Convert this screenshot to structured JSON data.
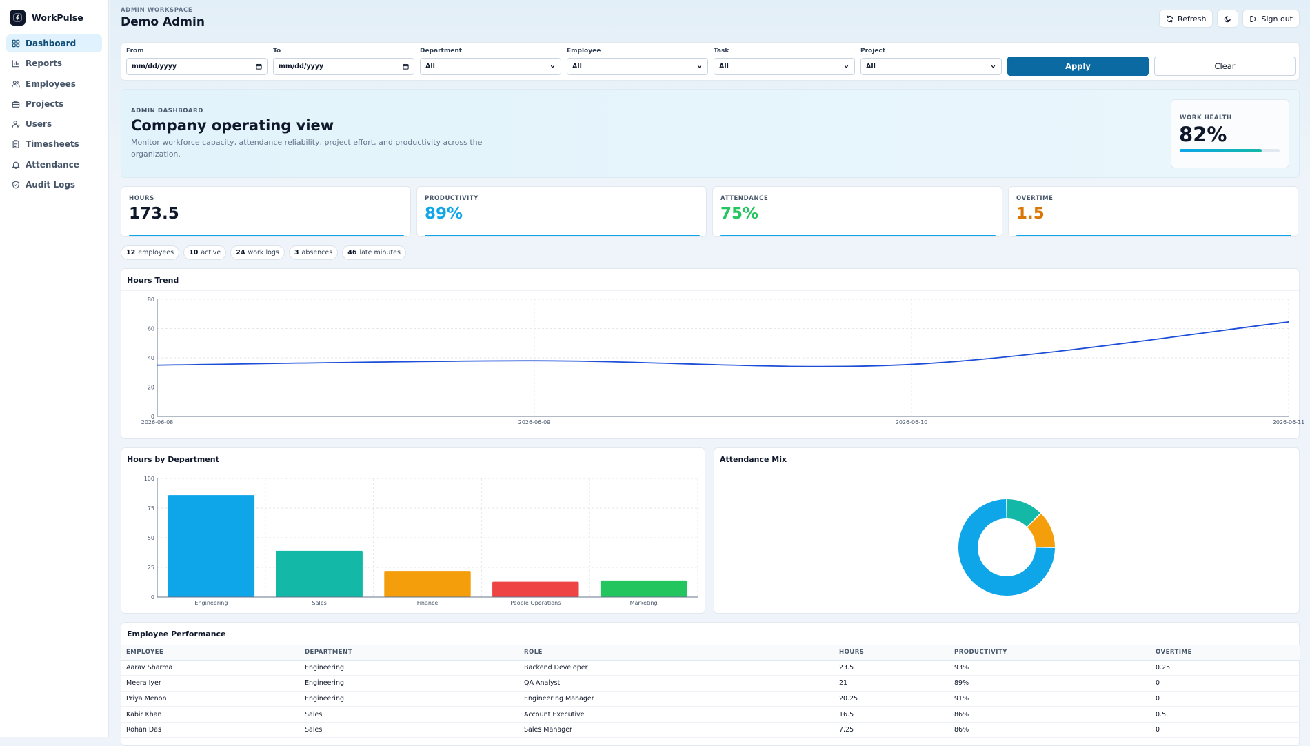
{
  "brand": {
    "name": "WorkPulse"
  },
  "nav": [
    {
      "label": "Dashboard",
      "icon": "grid-icon",
      "active": true
    },
    {
      "label": "Reports",
      "icon": "bar-chart-icon"
    },
    {
      "label": "Employees",
      "icon": "users-icon"
    },
    {
      "label": "Projects",
      "icon": "briefcase-icon"
    },
    {
      "label": "Users",
      "icon": "user-icon"
    },
    {
      "label": "Timesheets",
      "icon": "clipboard-icon"
    },
    {
      "label": "Attendance",
      "icon": "bell-icon"
    },
    {
      "label": "Audit Logs",
      "icon": "shield-icon"
    }
  ],
  "header": {
    "workspace_label": "ADMIN WORKSPACE",
    "title": "Demo Admin",
    "refresh_label": "Refresh",
    "theme_icon": "moon-icon",
    "signout_label": "Sign out"
  },
  "filters": {
    "from_label": "From",
    "from_placeholder": "mm/dd/yyyy",
    "to_label": "To",
    "to_placeholder": "mm/dd/yyyy",
    "department_label": "Department",
    "department_value": "All",
    "employee_label": "Employee",
    "employee_value": "All",
    "task_label": "Task",
    "task_value": "All",
    "project_label": "Project",
    "project_value": "All",
    "apply_label": "Apply",
    "clear_label": "Clear"
  },
  "hero": {
    "label": "ADMIN DASHBOARD",
    "title": "Company operating view",
    "description": "Monitor workforce capacity, attendance reliability, project effort, and productivity across the organization.",
    "health_label": "WORK HEALTH",
    "health_value": "82%",
    "health_fraction": 0.82
  },
  "kpis": [
    {
      "label": "HOURS",
      "value": "173.5",
      "color": "#0f172a"
    },
    {
      "label": "PRODUCTIVITY",
      "value": "89%",
      "color": "#0ea5e9"
    },
    {
      "label": "ATTENDANCE",
      "value": "75%",
      "color": "#22c55e"
    },
    {
      "label": "OVERTIME",
      "value": "1.5",
      "color": "#d97706"
    }
  ],
  "pills": [
    {
      "count": "12",
      "label": "employees"
    },
    {
      "count": "10",
      "label": "active"
    },
    {
      "count": "24",
      "label": "work logs"
    },
    {
      "count": "3",
      "label": "absences"
    },
    {
      "count": "46",
      "label": "late minutes"
    }
  ],
  "chart_data": [
    {
      "type": "line",
      "title": "Hours Trend",
      "x": [
        "2026-06-08",
        "2026-06-09",
        "2026-06-10",
        "2026-06-11"
      ],
      "series": [
        {
          "values": [
            35,
            38,
            35.5,
            64.5
          ],
          "color": "#1d4ed8"
        }
      ],
      "ylim": [
        0,
        80
      ],
      "yticks": [
        0,
        20,
        40,
        60,
        80
      ],
      "grid": true
    },
    {
      "type": "bar",
      "title": "Hours by Department",
      "categories": [
        "Engineering",
        "Sales",
        "Finance",
        "People Operations",
        "Marketing"
      ],
      "values": [
        86,
        39,
        22,
        13,
        14
      ],
      "colors": [
        "#0ea5e9",
        "#14b8a6",
        "#f59e0b",
        "#ef4444",
        "#22c55e"
      ],
      "ylim": [
        0,
        100
      ],
      "yticks": [
        0,
        25,
        50,
        75,
        100
      ],
      "grid": true
    },
    {
      "type": "pie",
      "title": "Attendance Mix",
      "values": [
        75,
        12.5,
        12.5
      ],
      "colors": [
        "#0ea5e9",
        "#14b8a6",
        "#f59e0b"
      ]
    }
  ],
  "performance": {
    "title": "Employee Performance",
    "columns": [
      "EMPLOYEE",
      "DEPARTMENT",
      "ROLE",
      "HOURS",
      "PRODUCTIVITY",
      "OVERTIME"
    ],
    "rows": [
      [
        "Aarav Sharma",
        "Engineering",
        "Backend Developer",
        "23.5",
        "93%",
        "0.25"
      ],
      [
        "Meera Iyer",
        "Engineering",
        "QA Analyst",
        "21",
        "89%",
        "0"
      ],
      [
        "Priya Menon",
        "Engineering",
        "Engineering Manager",
        "20.25",
        "91%",
        "0"
      ],
      [
        "Kabir Khan",
        "Sales",
        "Account Executive",
        "16.5",
        "86%",
        "0.5"
      ],
      [
        "Rohan Das",
        "Sales",
        "Sales Manager",
        "7.25",
        "86%",
        "0"
      ]
    ]
  }
}
